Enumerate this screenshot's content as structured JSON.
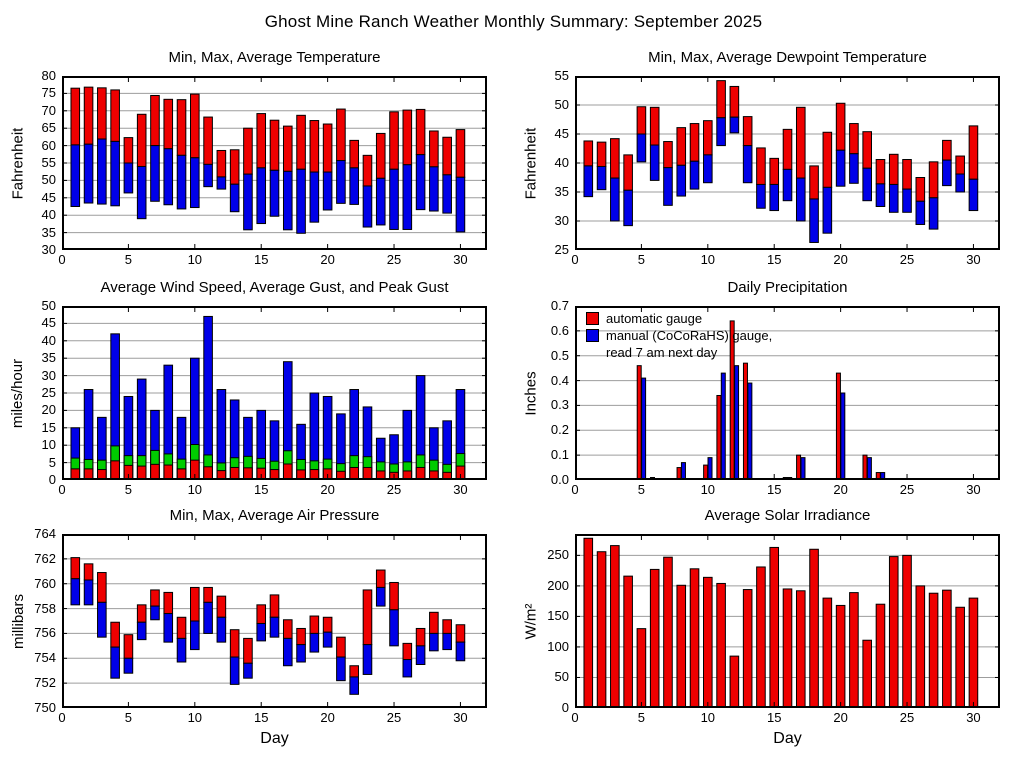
{
  "page_title": "Ghost Mine Ranch Weather Monthly Summary: September 2025",
  "colors": {
    "bar_red": "#ee0000",
    "bar_blue": "#0000e8",
    "bar_green": "#00cc00",
    "gridline": "#9d9d9d",
    "axis": "#000000"
  },
  "chart_data": [
    {
      "key": "temperature",
      "type": "bar",
      "variant": "range",
      "title": "Min, Max, Average Temperature",
      "ylabel": "Fahrenheit",
      "xlabel": "",
      "ylim": [
        30,
        80
      ],
      "yticks": [
        30,
        35,
        40,
        45,
        50,
        55,
        60,
        65,
        70,
        75,
        80
      ],
      "ytick_labels": [
        "30",
        "35",
        "40",
        "45",
        "50",
        "55",
        "60",
        "65",
        "70",
        "75",
        "80"
      ],
      "xlim": [
        0,
        32
      ],
      "xticks": [
        0,
        5,
        10,
        15,
        20,
        25,
        30
      ],
      "xtick_labels": [
        "0",
        "5",
        "10",
        "15",
        "20",
        "25",
        "30"
      ],
      "days": [
        1,
        2,
        3,
        4,
        5,
        6,
        7,
        8,
        9,
        10,
        11,
        12,
        13,
        14,
        15,
        16,
        17,
        18,
        19,
        20,
        21,
        22,
        23,
        24,
        25,
        26,
        27,
        28,
        29,
        30
      ],
      "min": [
        42.5,
        43.5,
        43.2,
        42.7,
        46.4,
        39.0,
        44.0,
        43.0,
        41.8,
        42.2,
        48.2,
        47.5,
        41.0,
        35.8,
        37.6,
        39.7,
        35.8,
        34.8,
        38.0,
        41.5,
        43.4,
        43.1,
        36.6,
        37.2,
        35.9,
        35.9,
        41.6,
        41.2,
        40.6,
        35.2
      ],
      "avg": [
        60.2,
        60.4,
        61.9,
        61.2,
        55.0,
        54.0,
        60.0,
        59.1,
        57.2,
        56.5,
        54.6,
        51.0,
        48.9,
        51.8,
        53.6,
        52.9,
        52.6,
        53.2,
        52.4,
        52.4,
        55.7,
        53.6,
        48.4,
        50.6,
        53.2,
        54.5,
        57.4,
        53.9,
        51.6,
        50.9
      ],
      "max": [
        76.5,
        76.8,
        76.6,
        76.0,
        62.3,
        69.0,
        74.4,
        73.3,
        73.2,
        74.8,
        68.2,
        58.6,
        58.8,
        65.0,
        69.2,
        67.3,
        65.6,
        68.7,
        67.2,
        66.2,
        70.5,
        61.5,
        57.2,
        63.5,
        69.7,
        70.2,
        70.4,
        64.2,
        62.4,
        64.6
      ],
      "color_below_avg": "#0000e8",
      "color_above_avg": "#ee0000"
    },
    {
      "key": "dewpoint",
      "type": "bar",
      "variant": "range",
      "title": "Min, Max, Average Dewpoint Temperature",
      "ylabel": "Fahrenheit",
      "xlabel": "",
      "ylim": [
        25,
        55
      ],
      "yticks": [
        25,
        30,
        35,
        40,
        45,
        50,
        55
      ],
      "ytick_labels": [
        "25",
        "30",
        "35",
        "40",
        "45",
        "50",
        "55"
      ],
      "xlim": [
        0,
        32
      ],
      "xticks": [
        0,
        5,
        10,
        15,
        20,
        25,
        30
      ],
      "xtick_labels": [
        "0",
        "5",
        "10",
        "15",
        "20",
        "25",
        "30"
      ],
      "days": [
        1,
        2,
        3,
        4,
        5,
        6,
        7,
        8,
        9,
        10,
        11,
        12,
        13,
        14,
        15,
        16,
        17,
        18,
        19,
        20,
        21,
        22,
        23,
        24,
        25,
        26,
        27,
        28,
        29,
        30
      ],
      "min": [
        34.2,
        35.4,
        30.0,
        29.2,
        40.2,
        37.0,
        32.7,
        34.3,
        35.5,
        36.6,
        43.0,
        45.2,
        36.6,
        32.2,
        31.8,
        33.5,
        30.0,
        26.3,
        27.9,
        36.0,
        36.5,
        33.5,
        32.5,
        31.5,
        31.5,
        29.4,
        28.6,
        36.1,
        35.0,
        31.8
      ],
      "avg": [
        39.5,
        39.4,
        37.4,
        35.3,
        45.0,
        43.1,
        39.2,
        39.6,
        40.3,
        41.4,
        47.8,
        47.9,
        43.0,
        36.3,
        36.3,
        38.9,
        37.4,
        33.8,
        35.8,
        42.2,
        41.6,
        39.1,
        36.4,
        36.3,
        35.5,
        33.4,
        34.0,
        40.5,
        38.1,
        37.2
      ],
      "max": [
        43.8,
        43.6,
        44.2,
        41.4,
        49.7,
        49.6,
        43.7,
        46.1,
        46.8,
        47.3,
        54.2,
        53.2,
        48.0,
        42.6,
        40.8,
        45.8,
        49.6,
        39.5,
        45.3,
        50.3,
        46.8,
        45.4,
        40.6,
        41.5,
        40.6,
        37.5,
        40.2,
        43.9,
        41.2,
        46.4
      ],
      "color_below_avg": "#0000e8",
      "color_above_avg": "#ee0000"
    },
    {
      "key": "wind",
      "type": "bar",
      "variant": "overlay",
      "title": "Average Wind Speed, Average Gust, and Peak Gust",
      "ylabel": "miles/hour",
      "xlabel": "",
      "ylim": [
        0,
        50
      ],
      "yticks": [
        0,
        5,
        10,
        15,
        20,
        25,
        30,
        35,
        40,
        45,
        50
      ],
      "ytick_labels": [
        "0",
        "5",
        "10",
        "15",
        "20",
        "25",
        "30",
        "35",
        "40",
        "45",
        "50"
      ],
      "xlim": [
        0,
        32
      ],
      "xticks": [
        0,
        5,
        10,
        15,
        20,
        25,
        30
      ],
      "xtick_labels": [
        "0",
        "5",
        "10",
        "15",
        "20",
        "25",
        "30"
      ],
      "days": [
        1,
        2,
        3,
        4,
        5,
        6,
        7,
        8,
        9,
        10,
        11,
        12,
        13,
        14,
        15,
        16,
        17,
        18,
        19,
        20,
        21,
        22,
        23,
        24,
        25,
        26,
        27,
        28,
        29,
        30
      ],
      "series": [
        {
          "name": "peak-gust",
          "color": "#0000e8",
          "values": [
            15,
            26,
            18,
            42,
            24,
            29,
            20,
            33,
            18,
            35,
            47,
            26,
            23,
            18,
            20,
            17,
            34,
            16,
            25,
            24,
            19,
            26,
            21,
            12,
            13,
            20,
            30,
            15,
            17,
            26
          ]
        },
        {
          "name": "average-gust",
          "color": "#00cc00",
          "values": [
            6.3,
            5.9,
            5.7,
            9.8,
            7.0,
            7.0,
            8.5,
            7.5,
            6.0,
            10.2,
            7.2,
            4.9,
            6.4,
            6.8,
            6.2,
            5.4,
            8.4,
            5.9,
            5.5,
            6.0,
            4.7,
            7.0,
            6.7,
            5.2,
            4.6,
            5.2,
            7.2,
            5.7,
            4.5,
            7.6
          ]
        },
        {
          "name": "average-wind-speed",
          "color": "#ee0000",
          "values": [
            3.2,
            3.2,
            3.0,
            5.5,
            4.2,
            4.0,
            4.5,
            4.3,
            3.2,
            5.7,
            3.8,
            2.7,
            3.6,
            3.5,
            3.4,
            3.0,
            4.6,
            2.9,
            3.0,
            3.2,
            2.5,
            3.6,
            3.6,
            2.6,
            2.2,
            2.6,
            3.6,
            2.6,
            2.2,
            4.0
          ]
        }
      ]
    },
    {
      "key": "precipitation",
      "type": "bar",
      "variant": "pair",
      "title": "Daily Precipitation",
      "ylabel": "Inches",
      "xlabel": "",
      "ylim": [
        0,
        0.7
      ],
      "yticks": [
        0,
        0.1,
        0.2,
        0.3,
        0.4,
        0.5,
        0.6,
        0.7
      ],
      "ytick_labels": [
        "0.0",
        "0.1",
        "0.2",
        "0.3",
        "0.4",
        "0.5",
        "0.6",
        "0.7"
      ],
      "xlim": [
        0,
        32
      ],
      "xticks": [
        0,
        5,
        10,
        15,
        20,
        25,
        30
      ],
      "xtick_labels": [
        "0",
        "5",
        "10",
        "15",
        "20",
        "25",
        "30"
      ],
      "days": [
        1,
        2,
        3,
        4,
        5,
        6,
        7,
        8,
        9,
        10,
        11,
        12,
        13,
        14,
        15,
        16,
        17,
        18,
        19,
        20,
        21,
        22,
        23,
        24,
        25,
        26,
        27,
        28,
        29,
        30
      ],
      "series": [
        {
          "name": "automatic-gauge",
          "color": "#ee0000",
          "values": [
            0,
            0,
            0,
            0,
            0.46,
            0.01,
            0,
            0.05,
            0,
            0.06,
            0.34,
            0.64,
            0.47,
            0,
            0,
            0.01,
            0.1,
            0,
            0,
            0.43,
            0,
            0.1,
            0.03,
            0,
            0,
            0,
            0,
            0,
            0,
            0
          ]
        },
        {
          "name": "manual-cocorahs-gauge",
          "color": "#0000e8",
          "values": [
            0.005,
            0.005,
            0.005,
            0.005,
            0.41,
            0.005,
            0,
            0.07,
            0.005,
            0.09,
            0.43,
            0.46,
            0.39,
            0,
            0,
            0.01,
            0.09,
            0,
            0.005,
            0.35,
            0,
            0.09,
            0.03,
            0,
            0,
            0,
            0,
            0,
            0,
            0
          ]
        }
      ],
      "legend": {
        "entries": [
          {
            "label": "automatic gauge",
            "color": "#ee0000"
          },
          {
            "label": "manual (CoCoRaHS) gauge,",
            "label2": "read 7 am next day",
            "color": "#0000e8"
          }
        ]
      }
    },
    {
      "key": "pressure",
      "type": "bar",
      "variant": "range",
      "title": "Min, Max, Average Air Pressure",
      "ylabel": "millibars",
      "xlabel": "Day",
      "ylim": [
        750,
        764
      ],
      "yticks": [
        750,
        752,
        754,
        756,
        758,
        760,
        762,
        764
      ],
      "ytick_labels": [
        "750",
        "752",
        "754",
        "756",
        "758",
        "760",
        "762",
        "764"
      ],
      "xlim": [
        0,
        32
      ],
      "xticks": [
        0,
        5,
        10,
        15,
        20,
        25,
        30
      ],
      "xtick_labels": [
        "0",
        "5",
        "10",
        "15",
        "20",
        "25",
        "30"
      ],
      "days": [
        1,
        2,
        3,
        4,
        5,
        6,
        7,
        8,
        9,
        10,
        11,
        12,
        13,
        14,
        15,
        16,
        17,
        18,
        19,
        20,
        21,
        22,
        23,
        24,
        25,
        26,
        27,
        28,
        29,
        30
      ],
      "min": [
        758.3,
        758.3,
        755.7,
        752.4,
        752.8,
        755.5,
        757.1,
        755.3,
        753.7,
        754.7,
        756.0,
        755.3,
        751.9,
        752.4,
        755.4,
        755.7,
        753.4,
        753.7,
        754.5,
        754.9,
        752.2,
        751.1,
        752.7,
        758.2,
        755.0,
        752.5,
        753.5,
        754.6,
        754.7,
        753.8
      ],
      "avg": [
        760.4,
        760.3,
        758.5,
        754.9,
        754.0,
        756.9,
        758.2,
        757.6,
        755.6,
        757.0,
        758.5,
        757.3,
        754.1,
        753.6,
        756.8,
        757.3,
        755.6,
        755.1,
        756.0,
        756.1,
        754.1,
        752.5,
        755.1,
        759.7,
        757.9,
        753.9,
        755.0,
        756.0,
        756.0,
        755.3
      ],
      "max": [
        762.1,
        761.6,
        760.9,
        756.9,
        755.9,
        758.3,
        759.5,
        759.3,
        757.3,
        759.7,
        759.7,
        759.0,
        756.3,
        755.6,
        758.3,
        759.1,
        757.1,
        756.4,
        757.4,
        757.3,
        755.7,
        753.4,
        759.5,
        761.1,
        760.1,
        755.2,
        756.4,
        757.7,
        757.1,
        756.7
      ],
      "color_below_avg": "#0000e8",
      "color_above_avg": "#ee0000"
    },
    {
      "key": "solar",
      "type": "bar",
      "variant": "simple",
      "title": "Average Solar Irradiance",
      "ylabel": "W/m²",
      "xlabel": "Day",
      "ylim": [
        0,
        285
      ],
      "yticks": [
        0,
        50,
        100,
        150,
        200,
        250
      ],
      "ytick_labels": [
        "0",
        "50",
        "100",
        "150",
        "200",
        "250"
      ],
      "xlim": [
        0,
        32
      ],
      "xticks": [
        0,
        5,
        10,
        15,
        20,
        25,
        30
      ],
      "xtick_labels": [
        "0",
        "5",
        "10",
        "15",
        "20",
        "25",
        "30"
      ],
      "days": [
        1,
        2,
        3,
        4,
        5,
        6,
        7,
        8,
        9,
        10,
        11,
        12,
        13,
        14,
        15,
        16,
        17,
        18,
        19,
        20,
        21,
        22,
        23,
        24,
        25,
        26,
        27,
        28,
        29,
        30
      ],
      "values": [
        278,
        256,
        266,
        216,
        130,
        227,
        247,
        201,
        228,
        214,
        204,
        85,
        194,
        231,
        263,
        195,
        192,
        260,
        180,
        168,
        189,
        111,
        170,
        248,
        250,
        200,
        188,
        193,
        165,
        180
      ],
      "color": "#ee0000"
    }
  ]
}
